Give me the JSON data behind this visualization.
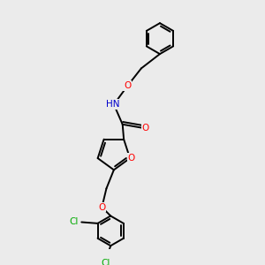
{
  "bg_color": "#ebebeb",
  "bond_color": "#000000",
  "atom_colors": {
    "O": "#ff0000",
    "N": "#0000cc",
    "Cl": "#00aa00",
    "C": "#000000",
    "H": "#555555"
  },
  "bond_lw": 1.4,
  "font_size": 7.5
}
